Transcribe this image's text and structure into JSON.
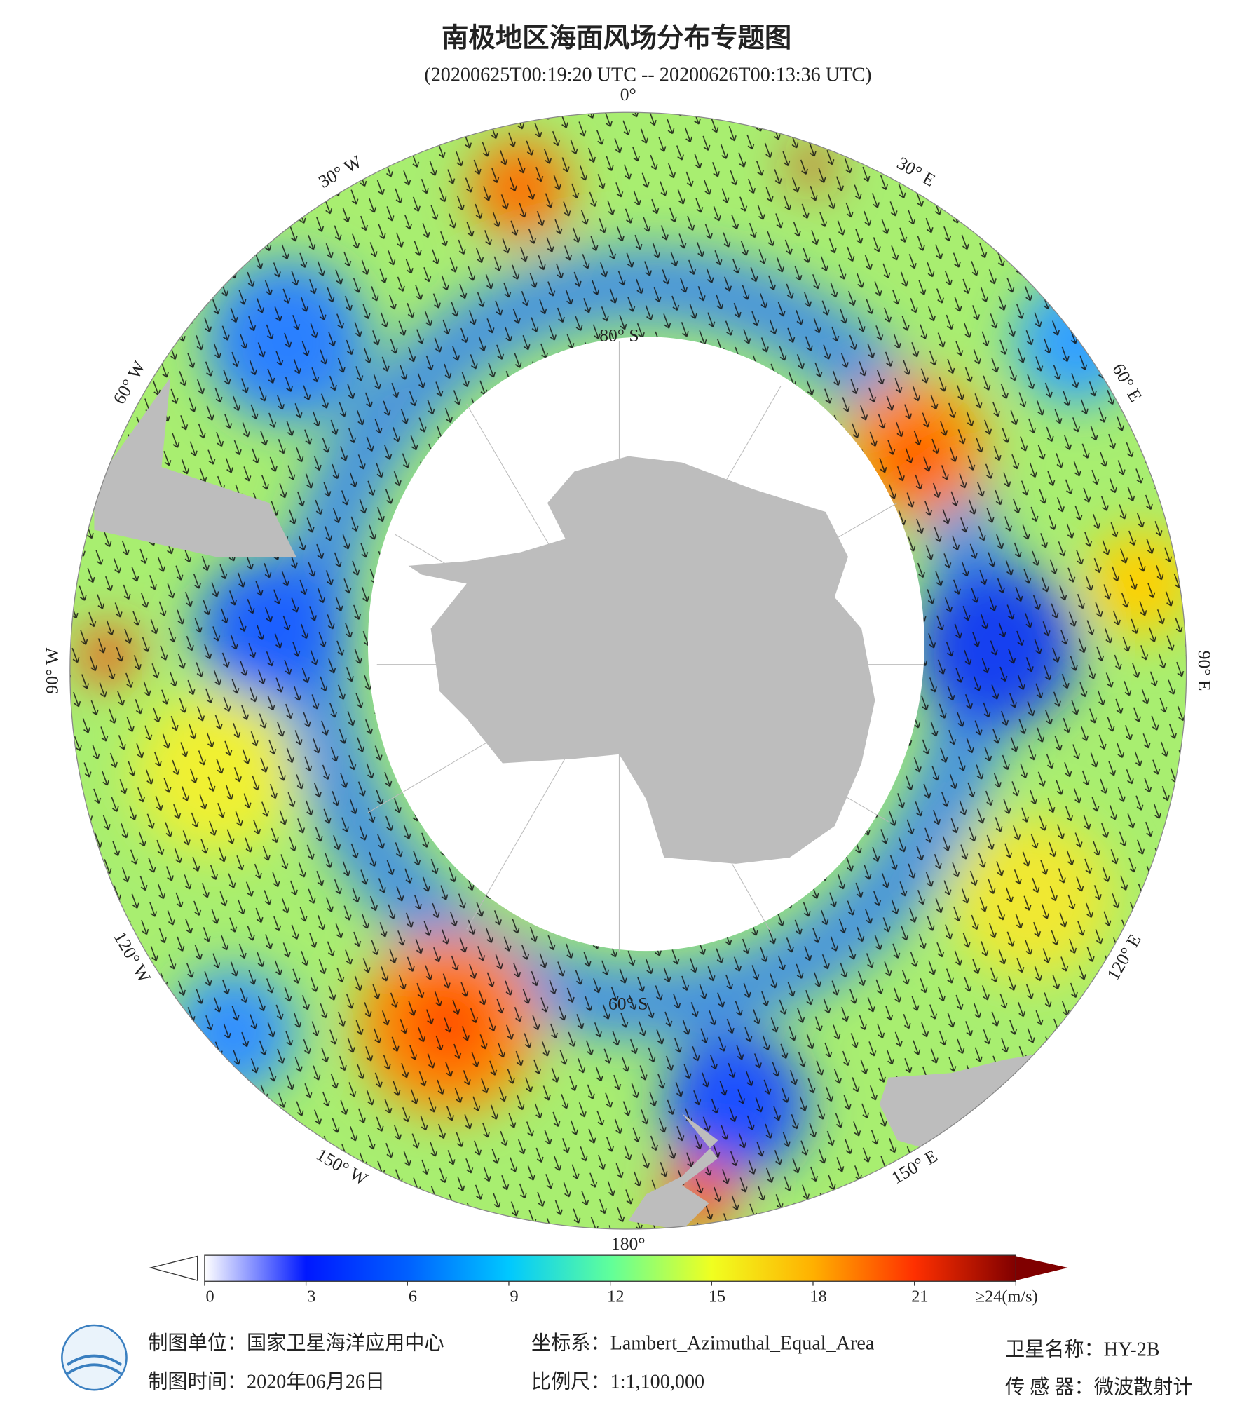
{
  "header": {
    "title": "南极地区海面风场分布专题图",
    "subtitle": "(20200625T00:19:20 UTC -- 20200626T00:13:36 UTC)"
  },
  "map": {
    "longitude_labels": [
      "0°",
      "30° E",
      "60° E",
      "90° E",
      "120° E",
      "150° E",
      "180°",
      "150° W",
      "120° W",
      "90° W",
      "60° W",
      "30° W"
    ],
    "latitude_labels": [
      "60° S",
      "80° S"
    ]
  },
  "colorbar": {
    "range": [
      0,
      24
    ],
    "ticks": [
      0,
      3,
      6,
      9,
      12,
      15,
      18,
      21,
      {
        "value": 24,
        "label": "≥24(m/s)"
      }
    ],
    "colors": [
      "#ffffff",
      "#0018ff",
      "#0060ff",
      "#00c8ff",
      "#60ff9a",
      "#f0ff20",
      "#ffb000",
      "#ff3000",
      "#800000"
    ]
  },
  "footer": {
    "unit": "制图单位：国家卫星海洋应用中心",
    "date": "制图时间：2020年06月26日",
    "crs": "坐标系：Lambert_Azimuthal_Equal_Area",
    "scale": "比例尺：1:1,100,000",
    "satellite": "卫星名称：HY-2B",
    "sensor": "传 感 器：微波散射计"
  }
}
